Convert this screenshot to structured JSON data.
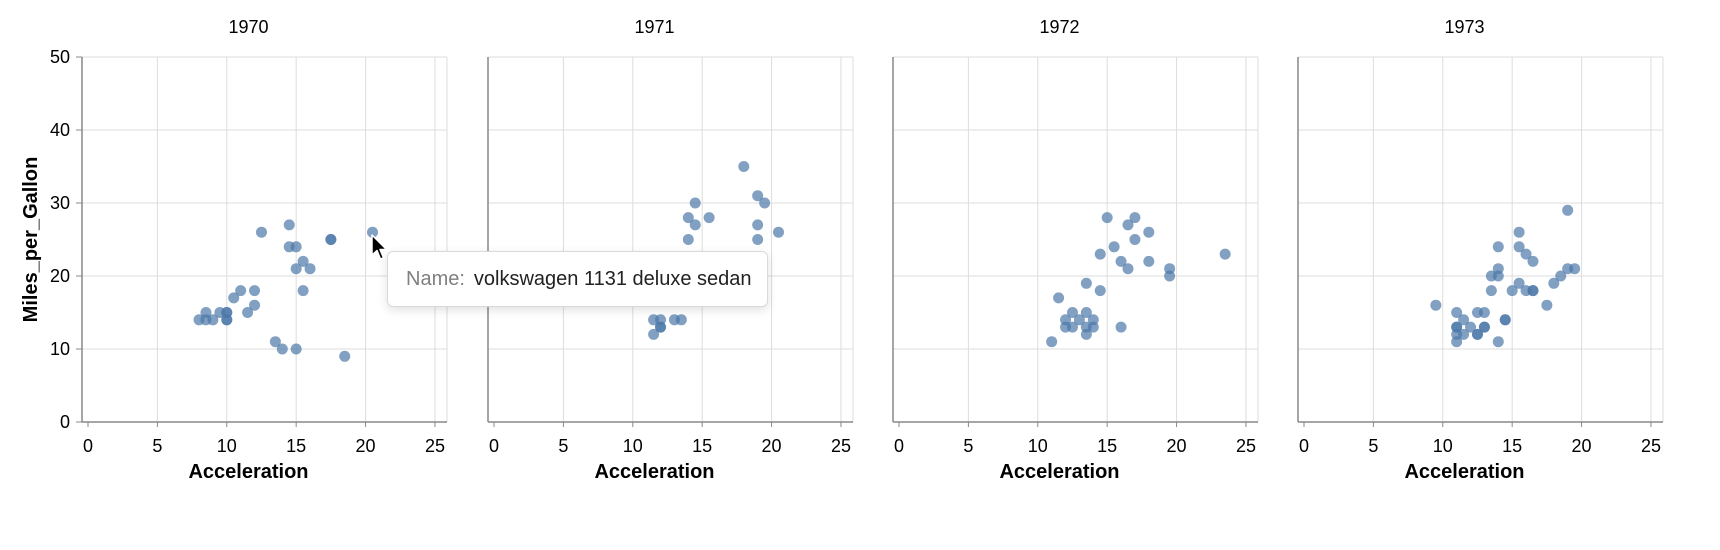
{
  "chart_data": {
    "type": "scatter",
    "facet_field": "Year",
    "xlabel": "Acceleration",
    "ylabel": "Miles_per_Gallon",
    "xlim": [
      0,
      26
    ],
    "ylim": [
      0,
      50
    ],
    "xticks": [
      0,
      5,
      10,
      15,
      20,
      25
    ],
    "yticks": [
      0,
      10,
      20,
      30,
      40,
      50
    ],
    "grid": true,
    "point_color": "#4c78a8",
    "panels": [
      {
        "title": "1970",
        "points": [
          [
            8,
            14
          ],
          [
            8.5,
            15
          ],
          [
            8.5,
            14
          ],
          [
            9,
            14
          ],
          [
            9.5,
            15
          ],
          [
            10,
            14
          ],
          [
            10,
            15
          ],
          [
            10,
            14
          ],
          [
            10,
            15
          ],
          [
            10.5,
            17
          ],
          [
            11,
            18
          ],
          [
            11.5,
            15
          ],
          [
            12,
            18
          ],
          [
            12,
            16
          ],
          [
            12.5,
            26
          ],
          [
            13.5,
            11
          ],
          [
            14,
            10
          ],
          [
            14.5,
            27
          ],
          [
            14.5,
            24
          ],
          [
            15,
            24
          ],
          [
            15,
            21
          ],
          [
            15,
            10
          ],
          [
            15.5,
            22
          ],
          [
            15.5,
            18
          ],
          [
            16,
            21
          ],
          [
            17.5,
            25
          ],
          [
            17.5,
            25
          ],
          [
            18.5,
            9
          ],
          [
            20.5,
            26
          ]
        ]
      },
      {
        "title": "1971",
        "points": [
          [
            11.5,
            14
          ],
          [
            11.5,
            12
          ],
          [
            12,
            14
          ],
          [
            12,
            13
          ],
          [
            12,
            13
          ],
          [
            13,
            14
          ],
          [
            13.5,
            14
          ],
          [
            14,
            28
          ],
          [
            14,
            25
          ],
          [
            14,
            22
          ],
          [
            14.5,
            30
          ],
          [
            14.5,
            27
          ],
          [
            15.5,
            28
          ],
          [
            18,
            35
          ],
          [
            19,
            31
          ],
          [
            19,
            27
          ],
          [
            19,
            25
          ],
          [
            19,
            22
          ],
          [
            19.5,
            30
          ],
          [
            20.5,
            26
          ]
        ]
      },
      {
        "title": "1972",
        "points": [
          [
            11,
            11
          ],
          [
            11.5,
            17
          ],
          [
            12,
            14
          ],
          [
            12,
            13
          ],
          [
            12.5,
            15
          ],
          [
            12.5,
            13
          ],
          [
            13,
            14
          ],
          [
            13.5,
            19
          ],
          [
            13.5,
            15
          ],
          [
            13.5,
            13
          ],
          [
            13.5,
            12
          ],
          [
            14,
            14
          ],
          [
            14,
            13
          ],
          [
            14.5,
            23
          ],
          [
            14.5,
            18
          ],
          [
            15,
            28
          ],
          [
            15.5,
            24
          ],
          [
            16,
            22
          ],
          [
            16,
            13
          ],
          [
            16.5,
            27
          ],
          [
            16.5,
            21
          ],
          [
            17,
            28
          ],
          [
            17,
            25
          ],
          [
            18,
            26
          ],
          [
            18,
            22
          ],
          [
            19.5,
            21
          ],
          [
            19.5,
            20
          ],
          [
            23.5,
            23
          ]
        ]
      },
      {
        "title": "1973",
        "points": [
          [
            9.5,
            16
          ],
          [
            11,
            15
          ],
          [
            11,
            13
          ],
          [
            11,
            12
          ],
          [
            11,
            11
          ],
          [
            11,
            13
          ],
          [
            11.5,
            14
          ],
          [
            11.5,
            12
          ],
          [
            12,
            13
          ],
          [
            12.5,
            15
          ],
          [
            12.5,
            12
          ],
          [
            12.5,
            12
          ],
          [
            13,
            15
          ],
          [
            13,
            13
          ],
          [
            13,
            13
          ],
          [
            13.5,
            18
          ],
          [
            13.5,
            20
          ],
          [
            14,
            24
          ],
          [
            14,
            21
          ],
          [
            14,
            20
          ],
          [
            14,
            11
          ],
          [
            14.5,
            14
          ],
          [
            14.5,
            14
          ],
          [
            15,
            18
          ],
          [
            15.5,
            26
          ],
          [
            15.5,
            24
          ],
          [
            15.5,
            19
          ],
          [
            16,
            23
          ],
          [
            16,
            18
          ],
          [
            16.5,
            22
          ],
          [
            16.5,
            18
          ],
          [
            16.5,
            18
          ],
          [
            17.5,
            16
          ],
          [
            18,
            19
          ],
          [
            18.5,
            20
          ],
          [
            19,
            29
          ],
          [
            19,
            21
          ],
          [
            19.5,
            21
          ]
        ]
      }
    ]
  },
  "tooltip": {
    "key": "Name:",
    "value": "volkswagen 1131 deluxe sedan"
  },
  "icons": {
    "cursor": "mouse-pointer-icon"
  }
}
